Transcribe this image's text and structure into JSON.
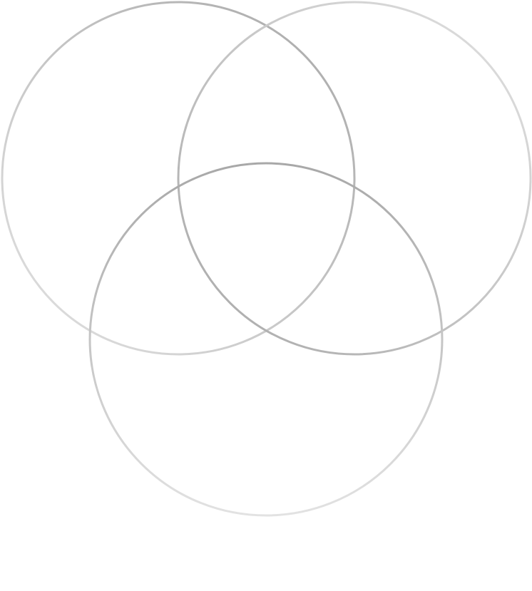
{
  "diagram": {
    "type": "venn",
    "set_count": 3,
    "labels": [],
    "colors": {
      "background": "#ffffff",
      "ring_dark": "#a8a8a8",
      "ring_light": "#e2e2e2"
    }
  }
}
